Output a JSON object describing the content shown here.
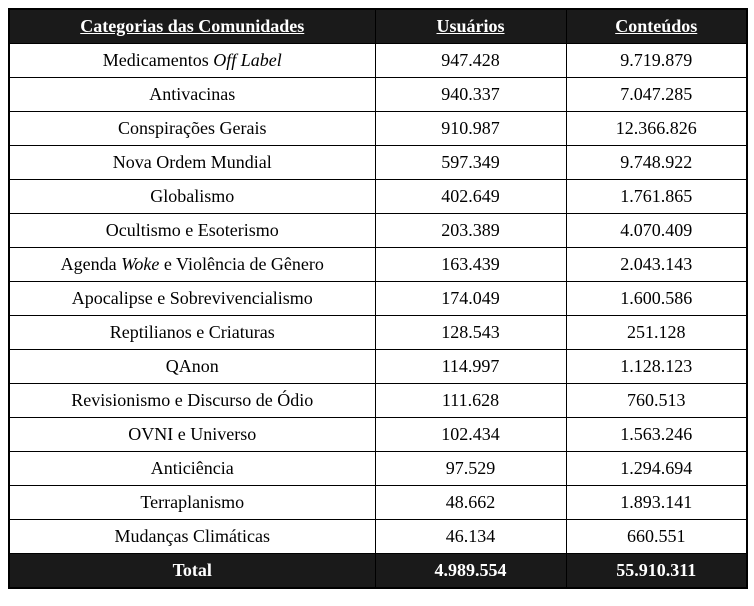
{
  "colors": {
    "header_bg": "#1a1a1a",
    "header_text": "#ffffff",
    "border": "#000000",
    "body_text": "#000000",
    "body_bg": "#ffffff"
  },
  "table": {
    "columns": [
      {
        "key": "category",
        "label": "Categorias das Comunidades"
      },
      {
        "key": "users",
        "label": "Usuários"
      },
      {
        "key": "contents",
        "label": "Conteúdos"
      }
    ],
    "rows": [
      {
        "category": [
          {
            "t": "Medicamentos ",
            "i": false
          },
          {
            "t": "Off Label",
            "i": true
          }
        ],
        "users": "947.428",
        "contents": "9.719.879"
      },
      {
        "category": [
          {
            "t": "Antivacinas",
            "i": false
          }
        ],
        "users": "940.337",
        "contents": "7.047.285"
      },
      {
        "category": [
          {
            "t": "Conspirações Gerais",
            "i": false
          }
        ],
        "users": "910.987",
        "contents": "12.366.826"
      },
      {
        "category": [
          {
            "t": "Nova Ordem Mundial",
            "i": false
          }
        ],
        "users": "597.349",
        "contents": "9.748.922"
      },
      {
        "category": [
          {
            "t": "Globalismo",
            "i": false
          }
        ],
        "users": "402.649",
        "contents": "1.761.865"
      },
      {
        "category": [
          {
            "t": "Ocultismo e Esoterismo",
            "i": false
          }
        ],
        "users": "203.389",
        "contents": "4.070.409"
      },
      {
        "category": [
          {
            "t": "Agenda ",
            "i": false
          },
          {
            "t": "Woke",
            "i": true
          },
          {
            "t": " e Violência de Gênero",
            "i": false
          }
        ],
        "users": "163.439",
        "contents": "2.043.143"
      },
      {
        "category": [
          {
            "t": "Apocalipse e Sobrevivencialismo",
            "i": false
          }
        ],
        "users": "174.049",
        "contents": "1.600.586"
      },
      {
        "category": [
          {
            "t": "Reptilianos e Criaturas",
            "i": false
          }
        ],
        "users": "128.543",
        "contents": "251.128"
      },
      {
        "category": [
          {
            "t": "QAnon",
            "i": false
          }
        ],
        "users": "114.997",
        "contents": "1.128.123"
      },
      {
        "category": [
          {
            "t": "Revisionismo e Discurso de Ódio",
            "i": false
          }
        ],
        "users": "111.628",
        "contents": "760.513"
      },
      {
        "category": [
          {
            "t": "OVNI e Universo",
            "i": false
          }
        ],
        "users": "102.434",
        "contents": "1.563.246"
      },
      {
        "category": [
          {
            "t": "Anticiência",
            "i": false
          }
        ],
        "users": "97.529",
        "contents": "1.294.694"
      },
      {
        "category": [
          {
            "t": "Terraplanismo",
            "i": false
          }
        ],
        "users": "48.662",
        "contents": "1.893.141"
      },
      {
        "category": [
          {
            "t": "Mudanças Climáticas",
            "i": false
          }
        ],
        "users": "46.134",
        "contents": "660.551"
      }
    ],
    "total_row": {
      "label": "Total",
      "users": "4.989.554",
      "contents": "55.910.311"
    }
  },
  "chart_data": {
    "type": "table",
    "title": "Categorias das Comunidades",
    "categories": [
      "Medicamentos Off Label",
      "Antivacinas",
      "Conspirações Gerais",
      "Nova Ordem Mundial",
      "Globalismo",
      "Ocultismo e Esoterismo",
      "Agenda Woke e Violência de Gênero",
      "Apocalipse e Sobrevivencialismo",
      "Reptilianos e Criaturas",
      "QAnon",
      "Revisionismo e Discurso de Ódio",
      "OVNI e Universo",
      "Anticiência",
      "Terraplanismo",
      "Mudanças Climáticas"
    ],
    "series": [
      {
        "name": "Usuários",
        "values": [
          947428,
          940337,
          910987,
          597349,
          402649,
          203389,
          163439,
          174049,
          128543,
          114997,
          111628,
          102434,
          97529,
          48662,
          46134
        ]
      },
      {
        "name": "Conteúdos",
        "values": [
          9719879,
          7047285,
          12366826,
          9748922,
          1761865,
          4070409,
          2043143,
          1600586,
          251128,
          1128123,
          760513,
          1563246,
          1294694,
          1893141,
          660551
        ]
      }
    ],
    "totals": {
      "Usuários": 4989554,
      "Conteúdos": 55910311
    }
  }
}
